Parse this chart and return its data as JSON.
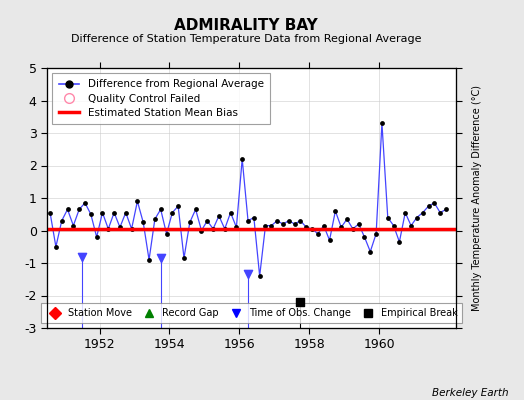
{
  "title": "ADMIRALITY BAY",
  "subtitle": "Difference of Station Temperature Data from Regional Average",
  "ylabel": "Monthly Temperature Anomaly Difference (°C)",
  "xlabel_note": "Berkeley Earth",
  "background_color": "#e8e8e8",
  "plot_bg_color": "#ffffff",
  "xlim": [
    1950.5,
    1962.2
  ],
  "ylim": [
    -3,
    5
  ],
  "yticks": [
    -3,
    -2,
    -1,
    0,
    1,
    2,
    3,
    4,
    5
  ],
  "xticks": [
    1952,
    1954,
    1956,
    1958,
    1960
  ],
  "bias_value": 0.05,
  "line_color": "#4444ff",
  "dot_color": "#000000",
  "bias_color": "#ff0000",
  "empirical_break_x": 1957.75,
  "empirical_break_y": -2.2,
  "time_obs_change_x1": 1951.5,
  "time_obs_change_y1": -0.8,
  "time_obs_change_x2": 1953.75,
  "time_obs_change_y2": -0.85,
  "time_obs_change_x3": 1956.25,
  "time_obs_change_y3": -1.35,
  "data_x": [
    1950.583,
    1950.75,
    1950.917,
    1951.083,
    1951.25,
    1951.417,
    1951.583,
    1951.75,
    1951.917,
    1952.083,
    1952.25,
    1952.417,
    1952.583,
    1952.75,
    1952.917,
    1953.083,
    1953.25,
    1953.417,
    1953.583,
    1953.75,
    1953.917,
    1954.083,
    1954.25,
    1954.417,
    1954.583,
    1954.75,
    1954.917,
    1955.083,
    1955.25,
    1955.417,
    1955.583,
    1955.75,
    1955.917,
    1956.083,
    1956.25,
    1956.417,
    1956.583,
    1956.75,
    1956.917,
    1957.083,
    1957.25,
    1957.417,
    1957.583,
    1957.75,
    1957.917,
    1958.083,
    1958.25,
    1958.417,
    1958.583,
    1958.75,
    1958.917,
    1959.083,
    1959.25,
    1959.417,
    1959.583,
    1959.75,
    1959.917,
    1960.083,
    1960.25,
    1960.417,
    1960.583,
    1960.75,
    1960.917,
    1961.083,
    1961.25,
    1961.417,
    1961.583,
    1961.75,
    1961.917
  ],
  "data_y": [
    0.55,
    -0.5,
    0.3,
    0.65,
    0.15,
    0.65,
    0.85,
    0.5,
    -0.2,
    0.55,
    0.05,
    0.55,
    0.1,
    0.55,
    0.05,
    0.9,
    0.25,
    -0.9,
    0.35,
    0.65,
    -0.1,
    0.55,
    0.75,
    -0.85,
    0.25,
    0.65,
    0.0,
    0.3,
    0.05,
    0.45,
    0.05,
    0.55,
    0.1,
    2.2,
    0.3,
    0.4,
    -1.4,
    0.15,
    0.15,
    0.3,
    0.2,
    0.3,
    0.2,
    0.3,
    0.1,
    0.05,
    -0.1,
    0.15,
    -0.3,
    0.6,
    0.1,
    0.35,
    0.05,
    0.2,
    -0.2,
    -0.65,
    -0.1,
    3.3,
    0.4,
    0.15,
    -0.35,
    0.55,
    0.15,
    0.4,
    0.55,
    0.75,
    0.85,
    0.55,
    0.65
  ]
}
